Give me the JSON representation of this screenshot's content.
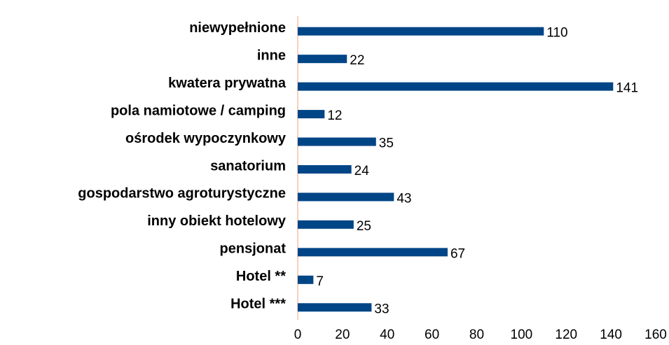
{
  "chart_data": {
    "type": "barh",
    "categories": [
      "niewypełnione",
      "inne",
      "kwatera prywatna",
      "pola namiotowe / camping",
      "ośrodek wypoczynkowy",
      "sanatorium",
      "gospodarstwo agroturystyczne",
      "inny obiekt hotelowy",
      "pensjonat",
      "Hotel **",
      "Hotel ***"
    ],
    "values": [
      110,
      22,
      141,
      12,
      35,
      24,
      43,
      25,
      67,
      7,
      33
    ],
    "color": "#004586",
    "xlim": [
      0,
      160
    ],
    "xticks": [
      0,
      20,
      40,
      60,
      80,
      100,
      120,
      140,
      160
    ],
    "grid": false
  }
}
